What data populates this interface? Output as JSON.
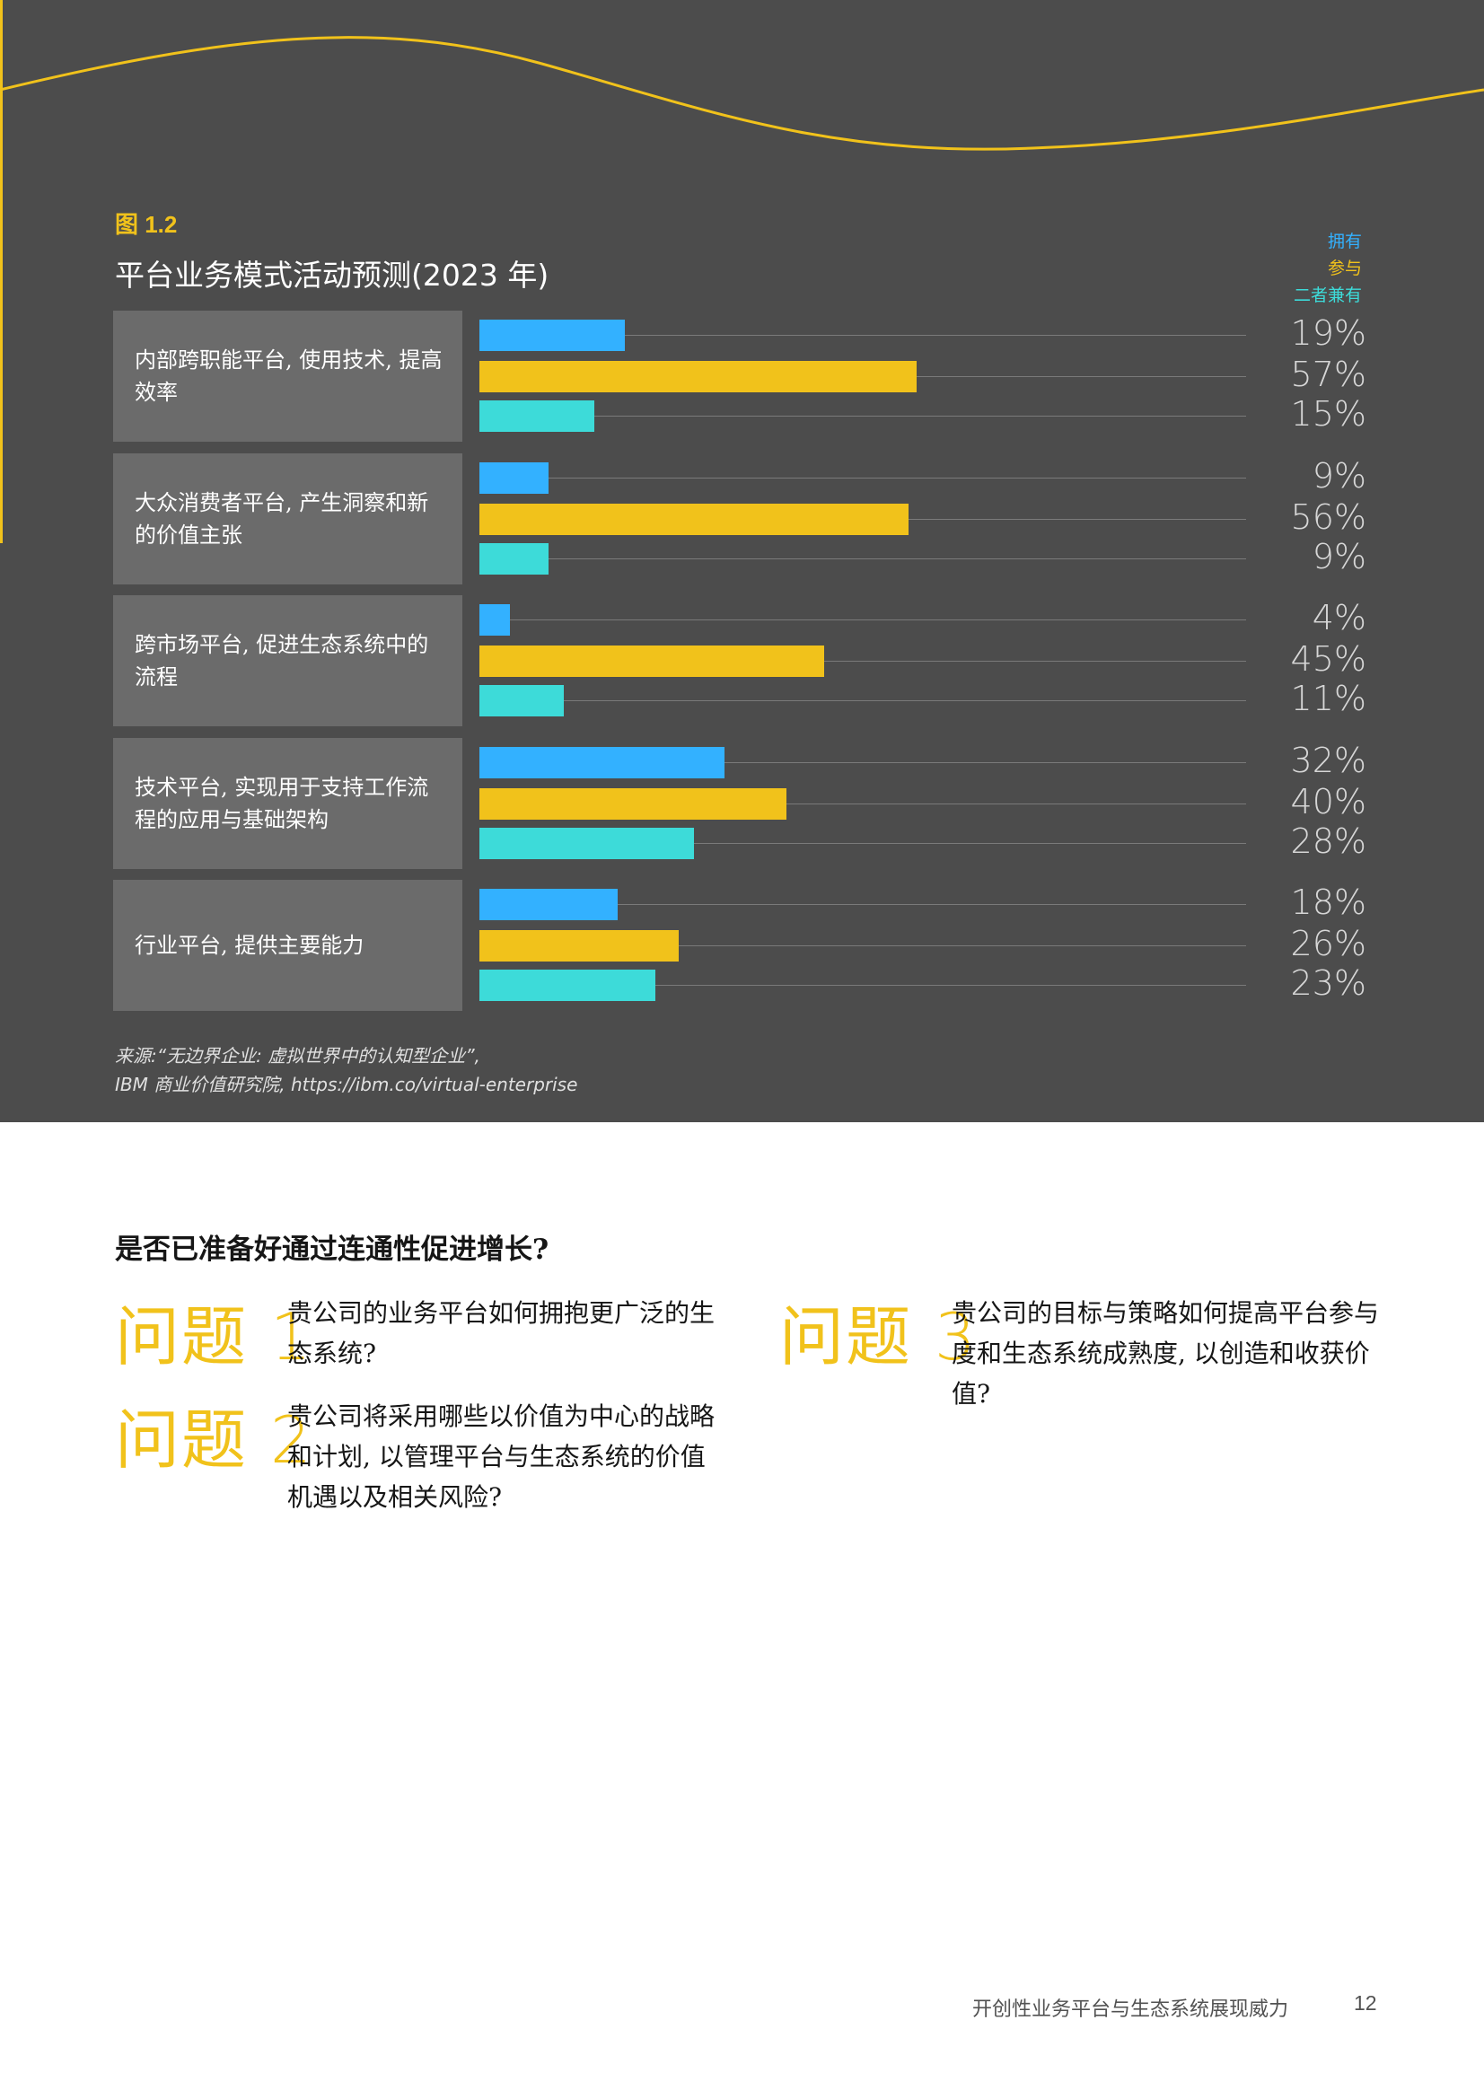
{
  "figure": {
    "label": "图 1.2",
    "title": "平台业务模式活动预测(2023 年)"
  },
  "legend": [
    {
      "label": "拥有",
      "color": "#33b1ff"
    },
    {
      "label": "参与",
      "color": "#f1c21b"
    },
    {
      "label": "二者兼有",
      "color": "#3ddbd9"
    }
  ],
  "chart_data": {
    "type": "bar",
    "orientation": "horizontal",
    "title": "平台业务模式活动预测(2023 年)",
    "categories": [
      "内部跨职能平台, 使用技术, 提高效率",
      "大众消费者平台, 产生洞察和新的价值主张",
      "跨市场平台, 促进生态系统中的流程",
      "技术平台, 实现用于支持工作流程的应用与基础架构",
      "行业平台, 提供主要能力"
    ],
    "series": [
      {
        "name": "拥有",
        "color": "#33b1ff",
        "values": [
          19,
          9,
          4,
          32,
          18
        ]
      },
      {
        "name": "参与",
        "color": "#f1c21b",
        "values": [
          57,
          56,
          45,
          40,
          26
        ]
      },
      {
        "name": "二者兼有",
        "color": "#3ddbd9",
        "values": [
          15,
          9,
          11,
          28,
          23
        ]
      }
    ],
    "value_labels": [
      [
        "19%",
        "57%",
        "15%"
      ],
      [
        "9%",
        "56%",
        "9%"
      ],
      [
        "4%",
        "45%",
        "11%"
      ],
      [
        "32%",
        "40%",
        "28%"
      ],
      [
        "18%",
        "26%",
        "23%"
      ]
    ],
    "unit": "%",
    "xlim": [
      0,
      100
    ],
    "grid": true,
    "legend_position": "top-right"
  },
  "source": {
    "line1": "来源:“无边界企业: 虚拟世界中的认知型企业”,",
    "line2": "IBM 商业价值研究院, https://ibm.co/virtual-enterprise"
  },
  "section": {
    "heading": "是否已准备好通过连通性促进增长?",
    "questions": [
      {
        "label": "问题 1",
        "text": "贵公司的业务平台如何拥抱更广泛的生态系统?"
      },
      {
        "label": "问题 2",
        "text": "贵公司将采用哪些以价值为中心的战略和计划, 以管理平台与生态系统的价值机遇以及相关风险?"
      },
      {
        "label": "问题 3",
        "text": "贵公司的目标与策略如何提高平台参与度和生态系统成熟度, 以创造和收获价值?"
      }
    ]
  },
  "footer": {
    "title": "开创性业务平台与生态系统展现威力",
    "page": "12"
  }
}
